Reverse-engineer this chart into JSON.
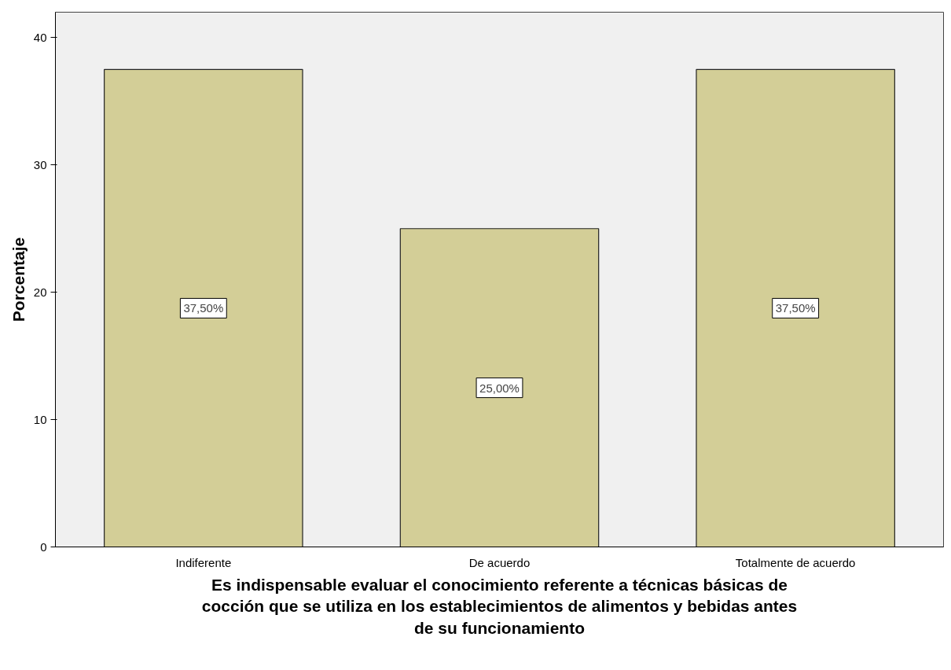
{
  "chart_data": {
    "type": "bar",
    "xlabel": "Es indispensable evaluar el conocimiento referente a técnicas básicas de cocción que se utiliza en los establecimientos de alimentos y bebidas antes de su funcionamiento",
    "ylabel": "Porcentaje",
    "categories": [
      "Indiferente",
      "De acuerdo",
      "Totalmente de acuerdo"
    ],
    "values": [
      37.5,
      25.0,
      37.5
    ],
    "value_labels": [
      "37,50%",
      "25,00%",
      "37,50%"
    ],
    "color": "#d3ce97",
    "ylim": [
      0,
      42
    ],
    "yticks": [
      0,
      10,
      20,
      30,
      40
    ],
    "grid": false
  }
}
